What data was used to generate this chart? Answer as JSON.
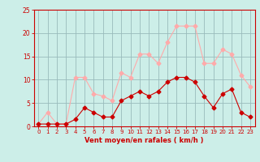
{
  "x": [
    0,
    1,
    2,
    3,
    4,
    5,
    6,
    7,
    8,
    9,
    10,
    11,
    12,
    13,
    14,
    15,
    16,
    17,
    18,
    19,
    20,
    21,
    22,
    23
  ],
  "wind_avg": [
    0.5,
    0.5,
    0.5,
    0.5,
    1.5,
    4.0,
    3.0,
    2.0,
    2.0,
    5.5,
    6.5,
    7.5,
    6.5,
    7.5,
    9.5,
    10.5,
    10.5,
    9.5,
    6.5,
    4.0,
    7.0,
    8.0,
    3.0,
    2.0
  ],
  "wind_gust": [
    0.5,
    3.0,
    0.5,
    0.5,
    10.5,
    10.5,
    7.0,
    6.5,
    5.5,
    11.5,
    10.5,
    15.5,
    15.5,
    13.5,
    18.0,
    21.5,
    21.5,
    21.5,
    13.5,
    13.5,
    16.5,
    15.5,
    11.0,
    8.5
  ],
  "color_avg": "#cc0000",
  "color_gust": "#ffaaaa",
  "bg_color": "#cceee8",
  "grid_color": "#99bbbb",
  "xlabel": "Vent moyen/en rafales ( km/h )",
  "xlabel_color": "#cc0000",
  "tick_color": "#cc0000",
  "spine_color": "#cc0000",
  "ylim": [
    0,
    25
  ],
  "yticks": [
    0,
    5,
    10,
    15,
    20,
    25
  ],
  "xticks": [
    0,
    1,
    2,
    3,
    4,
    5,
    6,
    7,
    8,
    9,
    10,
    11,
    12,
    13,
    14,
    15,
    16,
    17,
    18,
    19,
    20,
    21,
    22,
    23
  ]
}
